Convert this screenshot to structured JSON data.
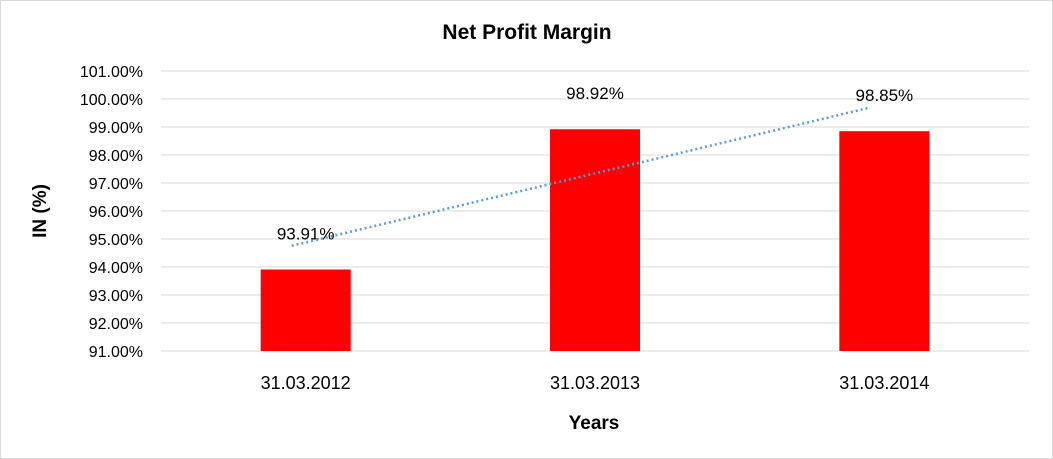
{
  "chart_data": {
    "type": "bar",
    "title": "Net Profit Margin",
    "xlabel": "Years",
    "ylabel": "IN (%)",
    "categories": [
      "31.03.2012",
      "31.03.2013",
      "31.03.2014"
    ],
    "values": [
      93.91,
      98.92,
      98.85
    ],
    "data_labels": [
      "93.91%",
      "98.92%",
      "98.85%"
    ],
    "ylim": [
      91,
      101
    ],
    "y_ticks": [
      91,
      92,
      93,
      94,
      95,
      96,
      97,
      98,
      99,
      100,
      101
    ],
    "y_tick_labels": [
      "91.00%",
      "92.00%",
      "93.00%",
      "94.00%",
      "95.00%",
      "96.00%",
      "97.00%",
      "98.00%",
      "99.00%",
      "100.00%",
      "101.00%"
    ],
    "grid": true,
    "legend": "none",
    "trendline": {
      "type": "linear",
      "style": "dotted"
    },
    "colors": {
      "bar": "#ff0000",
      "trendline": "#5b9bd5",
      "grid": "#d9d9d9"
    }
  }
}
